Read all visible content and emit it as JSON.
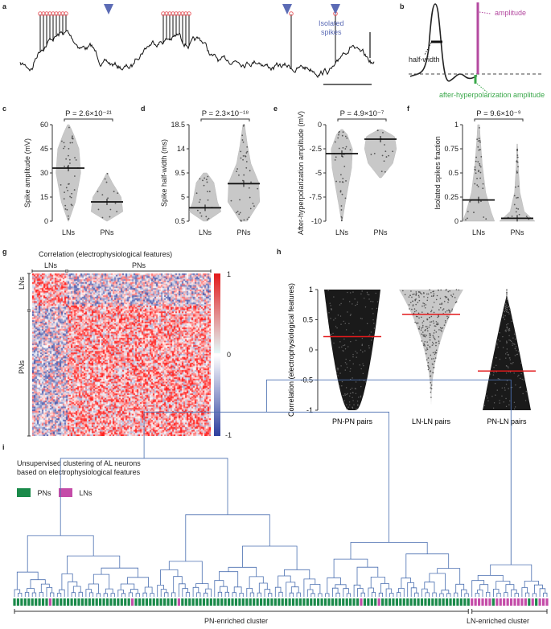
{
  "panel_labels": {
    "a": "a",
    "b": "b",
    "c": "c",
    "d": "d",
    "e": "e",
    "f": "f",
    "g": "g",
    "h": "h",
    "i": "i"
  },
  "panel_a": {
    "annotation": "Isolated\nspikes",
    "annotation_color": "#5b6bb5"
  },
  "panel_b": {
    "amplitude": "amplitude",
    "half_width": "half-width",
    "ahp": "after-hyperpolarization amplitude",
    "amplitude_color": "#b44aa0",
    "ahp_color": "#3aa84a"
  },
  "chart_data": [
    {
      "id": "c",
      "type": "violin",
      "title": "P = 2.6×10⁻²¹",
      "ylabel": "Spike amplitude (mV)",
      "categories": [
        "LNs",
        "PNs"
      ],
      "yticks": [
        "60",
        "45",
        "30",
        "15",
        "0"
      ],
      "ylim": [
        0,
        60
      ],
      "medians": [
        33,
        12
      ]
    },
    {
      "id": "d",
      "type": "violin",
      "title": "P = 2.3×10⁻¹⁸",
      "ylabel": "Spike half-width (ms)",
      "categories": [
        "LNs",
        "PNs"
      ],
      "yticks": [
        "18.5",
        "14",
        "9.5",
        "5",
        "0.5"
      ],
      "ylim": [
        0.5,
        18.5
      ],
      "medians": [
        3,
        7.5
      ]
    },
    {
      "id": "e",
      "type": "violin",
      "title": "P = 4.9×10⁻⁷",
      "ylabel": "After-hyperpolarization amplitude (mV)",
      "categories": [
        "LNs",
        "PNs"
      ],
      "yticks": [
        "0",
        "-2.5",
        "-5",
        "-7.5",
        "-10"
      ],
      "ylim": [
        -10,
        0
      ],
      "medians": [
        -3,
        -1.5
      ]
    },
    {
      "id": "f",
      "type": "violin",
      "title": "P = 9.6×10⁻⁹",
      "ylabel": "Isolated spikes fraction",
      "categories": [
        "LNs",
        "PNs"
      ],
      "yticks": [
        "1",
        "0.75",
        "0.5",
        "0.25",
        "0"
      ],
      "ylim": [
        0,
        1
      ],
      "medians": [
        0.22,
        0.03
      ]
    },
    {
      "id": "g",
      "type": "heatmap",
      "title": "Correlation (electrophysiological features)",
      "xgroups": [
        "LNs",
        "PNs"
      ],
      "ygroups": [
        "LNs",
        "PNs"
      ],
      "colorbar_ticks": [
        "1",
        "0",
        "-1"
      ],
      "colors": {
        "high": "#e31a1c",
        "mid": "#ffffff",
        "low": "#2c3e9e"
      }
    },
    {
      "id": "h",
      "type": "violin",
      "ylabel": "Correlation (electrophysiological features)",
      "yticks": [
        "1",
        "0.5",
        "0",
        "-0.5",
        "-1"
      ],
      "ylim": [
        -1,
        1
      ],
      "categories": [
        "PN-PN pairs",
        "LN-LN pairs",
        "PN-LN pairs"
      ],
      "medians": [
        0.22,
        0.59,
        -0.35
      ],
      "median_color": "#e31a1c"
    },
    {
      "id": "i",
      "type": "dendrogram",
      "title": "Unsupervised clustering of AL neurons\nbased on electrophysiological features",
      "legend": [
        {
          "label": "PNs",
          "color": "#1a8a4a"
        },
        {
          "label": "LNs",
          "color": "#c44ca8"
        }
      ],
      "clusters": [
        "PN-enriched cluster",
        "LN-enriched cluster"
      ],
      "line_color": "#4a6fb0"
    }
  ]
}
